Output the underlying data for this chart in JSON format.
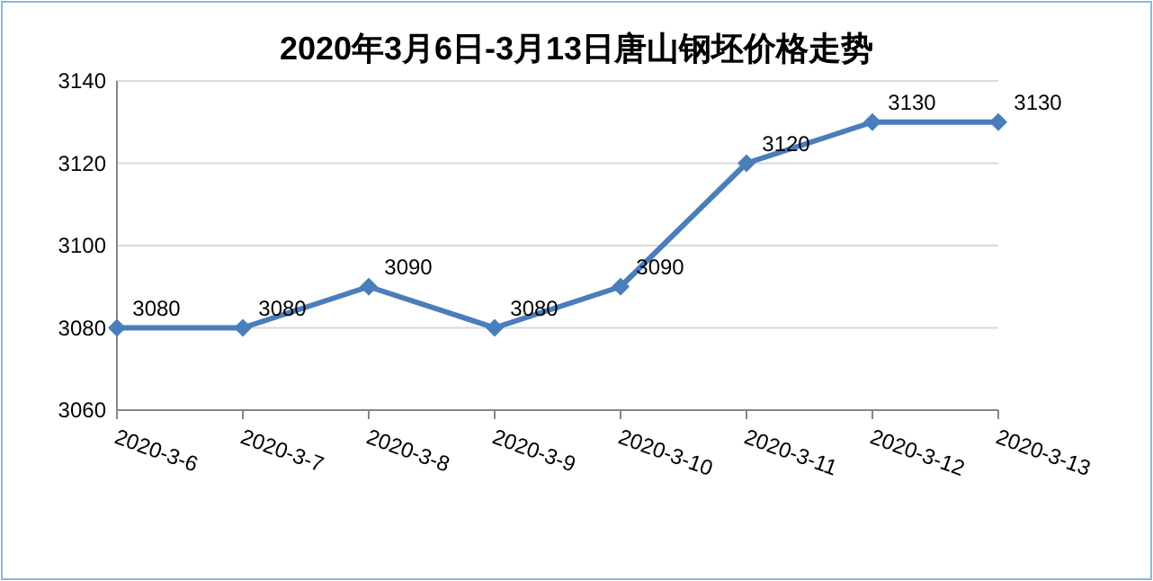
{
  "chart_data": {
    "type": "line",
    "title": "2020年3月6日-3月13日唐山钢坯价格走势",
    "categories": [
      "2020-3-6",
      "2020-3-7",
      "2020-3-8",
      "2020-3-9",
      "2020-3-10",
      "2020-3-11",
      "2020-3-12",
      "2020-3-13"
    ],
    "values": [
      3080,
      3080,
      3090,
      3080,
      3090,
      3120,
      3130,
      3130
    ],
    "color": "#4a7ebb",
    "ylim": [
      3060,
      3140
    ],
    "yticks": [
      3060,
      3080,
      3100,
      3120,
      3140
    ],
    "grid": "y",
    "marker": "diamond",
    "line_style": "solid",
    "data_labels": true
  }
}
